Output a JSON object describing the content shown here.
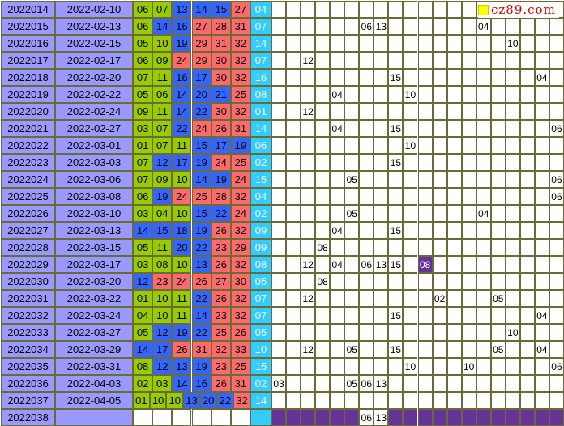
{
  "logo_text": "cz89.com",
  "colors": {
    "issue_bg": "#9999ff",
    "blue": "#3366ff",
    "green": "#99cc00",
    "red": "#ff6b6b",
    "cyan": "#33ccff",
    "purple": "#663399",
    "grid_border": "#6b6b3a"
  },
  "chart_data": {
    "type": "table",
    "miss_columns": 20,
    "rows": [
      {
        "issue": "2022014",
        "date": "2022-02-10",
        "nums": [
          [
            "06",
            "green"
          ],
          [
            "07",
            "green"
          ],
          [
            "13",
            "blue"
          ],
          [
            "14",
            "blue"
          ],
          [
            "15",
            "blue"
          ],
          [
            "27",
            "red"
          ]
        ],
        "back": "04",
        "marks": []
      },
      {
        "issue": "2022015",
        "date": "2022-02-13",
        "nums": [
          [
            "06",
            "green"
          ],
          [
            "14",
            "blue"
          ],
          [
            "16",
            "blue"
          ],
          [
            "27",
            "red"
          ],
          [
            "28",
            "red"
          ],
          [
            "31",
            "red"
          ]
        ],
        "back": "07",
        "marks": [
          [
            6,
            "06"
          ],
          [
            7,
            "13"
          ],
          [
            14,
            "04"
          ]
        ]
      },
      {
        "issue": "2022016",
        "date": "2022-02-15",
        "nums": [
          [
            "05",
            "green"
          ],
          [
            "10",
            "green"
          ],
          [
            "19",
            "blue"
          ],
          [
            "29",
            "red"
          ],
          [
            "31",
            "red"
          ],
          [
            "32",
            "red"
          ]
        ],
        "back": "14",
        "marks": [
          [
            16,
            "10"
          ]
        ]
      },
      {
        "issue": "2022017",
        "date": "2022-02-17",
        "nums": [
          [
            "06",
            "green"
          ],
          [
            "09",
            "green"
          ],
          [
            "24",
            "red"
          ],
          [
            "29",
            "red"
          ],
          [
            "30",
            "red"
          ],
          [
            "32",
            "red"
          ]
        ],
        "back": "07",
        "marks": [
          [
            2,
            "12"
          ]
        ]
      },
      {
        "issue": "2022018",
        "date": "2022-02-20",
        "nums": [
          [
            "07",
            "green"
          ],
          [
            "11",
            "green"
          ],
          [
            "16",
            "blue"
          ],
          [
            "17",
            "blue"
          ],
          [
            "30",
            "red"
          ],
          [
            "32",
            "red"
          ]
        ],
        "back": "16",
        "marks": [
          [
            8,
            "15"
          ],
          [
            18,
            "04"
          ]
        ]
      },
      {
        "issue": "2022019",
        "date": "2022-02-22",
        "nums": [
          [
            "05",
            "green"
          ],
          [
            "06",
            "green"
          ],
          [
            "14",
            "blue"
          ],
          [
            "20",
            "blue"
          ],
          [
            "21",
            "blue"
          ],
          [
            "25",
            "red"
          ]
        ],
        "back": "08",
        "marks": [
          [
            4,
            "04"
          ],
          [
            9,
            "10"
          ]
        ]
      },
      {
        "issue": "2022020",
        "date": "2022-02-24",
        "nums": [
          [
            "09",
            "green"
          ],
          [
            "11",
            "green"
          ],
          [
            "14",
            "blue"
          ],
          [
            "22",
            "blue"
          ],
          [
            "30",
            "red"
          ],
          [
            "32",
            "red"
          ]
        ],
        "back": "01",
        "marks": [
          [
            2,
            "12"
          ]
        ]
      },
      {
        "issue": "2022021",
        "date": "2022-02-27",
        "nums": [
          [
            "03",
            "green"
          ],
          [
            "07",
            "green"
          ],
          [
            "22",
            "blue"
          ],
          [
            "24",
            "red"
          ],
          [
            "26",
            "red"
          ],
          [
            "31",
            "red"
          ]
        ],
        "back": "14",
        "marks": [
          [
            4,
            "04"
          ],
          [
            8,
            "15"
          ],
          [
            19,
            "06"
          ]
        ]
      },
      {
        "issue": "2022022",
        "date": "2022-03-01",
        "nums": [
          [
            "01",
            "green"
          ],
          [
            "07",
            "green"
          ],
          [
            "11",
            "green"
          ],
          [
            "15",
            "blue"
          ],
          [
            "17",
            "blue"
          ],
          [
            "19",
            "blue"
          ]
        ],
        "back": "06",
        "marks": [
          [
            9,
            "10"
          ]
        ]
      },
      {
        "issue": "2022023",
        "date": "2022-03-03",
        "nums": [
          [
            "07",
            "green"
          ],
          [
            "12",
            "blue"
          ],
          [
            "17",
            "blue"
          ],
          [
            "19",
            "blue"
          ],
          [
            "24",
            "red"
          ],
          [
            "25",
            "red"
          ]
        ],
        "back": "02",
        "marks": [
          [
            8,
            "15"
          ]
        ]
      },
      {
        "issue": "2022024",
        "date": "2022-03-06",
        "nums": [
          [
            "07",
            "green"
          ],
          [
            "09",
            "green"
          ],
          [
            "10",
            "green"
          ],
          [
            "14",
            "blue"
          ],
          [
            "19",
            "blue"
          ],
          [
            "24",
            "red"
          ]
        ],
        "back": "15",
        "marks": [
          [
            5,
            "05"
          ],
          [
            19,
            "06"
          ]
        ]
      },
      {
        "issue": "2022025",
        "date": "2022-03-08",
        "nums": [
          [
            "06",
            "green"
          ],
          [
            "19",
            "blue"
          ],
          [
            "24",
            "red"
          ],
          [
            "25",
            "red"
          ],
          [
            "28",
            "red"
          ],
          [
            "32",
            "red"
          ]
        ],
        "back": "04",
        "marks": [
          [
            19,
            "06"
          ]
        ]
      },
      {
        "issue": "2022026",
        "date": "2022-03-10",
        "nums": [
          [
            "03",
            "green"
          ],
          [
            "04",
            "green"
          ],
          [
            "10",
            "green"
          ],
          [
            "15",
            "blue"
          ],
          [
            "22",
            "blue"
          ],
          [
            "24",
            "red"
          ]
        ],
        "back": "02",
        "marks": [
          [
            5,
            "05"
          ],
          [
            14,
            "04"
          ]
        ]
      },
      {
        "issue": "2022027",
        "date": "2022-03-13",
        "nums": [
          [
            "14",
            "blue"
          ],
          [
            "15",
            "blue"
          ],
          [
            "18",
            "blue"
          ],
          [
            "19",
            "blue"
          ],
          [
            "26",
            "red"
          ],
          [
            "32",
            "red"
          ]
        ],
        "back": "09",
        "marks": [
          [
            4,
            "04"
          ],
          [
            8,
            "15"
          ]
        ]
      },
      {
        "issue": "2022028",
        "date": "2022-03-15",
        "nums": [
          [
            "05",
            "green"
          ],
          [
            "11",
            "green"
          ],
          [
            "20",
            "blue"
          ],
          [
            "22",
            "blue"
          ],
          [
            "23",
            "red"
          ],
          [
            "29",
            "red"
          ]
        ],
        "back": "09",
        "marks": [
          [
            3,
            "08"
          ]
        ]
      },
      {
        "issue": "2022029",
        "date": "2022-03-17",
        "nums": [
          [
            "03",
            "green"
          ],
          [
            "08",
            "green"
          ],
          [
            "10",
            "green"
          ],
          [
            "13",
            "blue"
          ],
          [
            "26",
            "red"
          ],
          [
            "32",
            "red"
          ]
        ],
        "back": "08",
        "marks": [
          [
            2,
            "12"
          ],
          [
            4,
            "04"
          ],
          [
            6,
            "06"
          ],
          [
            7,
            "13"
          ],
          [
            8,
            "15"
          ],
          [
            10,
            "08p"
          ]
        ]
      },
      {
        "issue": "2022030",
        "date": "2022-03-20",
        "nums": [
          [
            "12",
            "blue"
          ],
          [
            "23",
            "red"
          ],
          [
            "24",
            "red"
          ],
          [
            "26",
            "red"
          ],
          [
            "27",
            "red"
          ],
          [
            "30",
            "red"
          ]
        ],
        "back": "05",
        "marks": [
          [
            3,
            "08"
          ]
        ]
      },
      {
        "issue": "2022031",
        "date": "2022-03-22",
        "nums": [
          [
            "01",
            "green"
          ],
          [
            "10",
            "green"
          ],
          [
            "11",
            "green"
          ],
          [
            "22",
            "blue"
          ],
          [
            "26",
            "red"
          ],
          [
            "32",
            "red"
          ]
        ],
        "back": "07",
        "marks": [
          [
            2,
            "12"
          ],
          [
            11,
            "02"
          ],
          [
            15,
            "05"
          ]
        ]
      },
      {
        "issue": "2022032",
        "date": "2022-03-24",
        "nums": [
          [
            "04",
            "green"
          ],
          [
            "10",
            "green"
          ],
          [
            "11",
            "green"
          ],
          [
            "14",
            "blue"
          ],
          [
            "23",
            "red"
          ],
          [
            "32",
            "red"
          ]
        ],
        "back": "07",
        "marks": [
          [
            8,
            "15"
          ],
          [
            18,
            "04"
          ]
        ]
      },
      {
        "issue": "2022033",
        "date": "2022-03-27",
        "nums": [
          [
            "05",
            "green"
          ],
          [
            "12",
            "blue"
          ],
          [
            "19",
            "blue"
          ],
          [
            "22",
            "blue"
          ],
          [
            "25",
            "red"
          ],
          [
            "26",
            "red"
          ]
        ],
        "back": "05",
        "marks": [
          [
            16,
            "10"
          ]
        ]
      },
      {
        "issue": "2022034",
        "date": "2022-03-29",
        "nums": [
          [
            "14",
            "blue"
          ],
          [
            "17",
            "blue"
          ],
          [
            "26",
            "red"
          ],
          [
            "31",
            "red"
          ],
          [
            "32",
            "red"
          ],
          [
            "33",
            "red"
          ]
        ],
        "back": "10",
        "marks": [
          [
            2,
            "12"
          ],
          [
            5,
            "05"
          ],
          [
            8,
            "15"
          ],
          [
            15,
            "05"
          ],
          [
            18,
            "04"
          ]
        ]
      },
      {
        "issue": "2022035",
        "date": "2022-03-31",
        "nums": [
          [
            "08",
            "green"
          ],
          [
            "12",
            "blue"
          ],
          [
            "13",
            "blue"
          ],
          [
            "19",
            "blue"
          ],
          [
            "23",
            "red"
          ],
          [
            "25",
            "red"
          ]
        ],
        "back": "15",
        "marks": [
          [
            9,
            "10"
          ],
          [
            13,
            "10"
          ],
          [
            19,
            "06"
          ]
        ]
      },
      {
        "issue": "2022036",
        "date": "2022-04-03",
        "nums": [
          [
            "02",
            "green"
          ],
          [
            "03",
            "green"
          ],
          [
            "14",
            "blue"
          ],
          [
            "16",
            "blue"
          ],
          [
            "26",
            "red"
          ],
          [
            "31",
            "red"
          ]
        ],
        "back": "02",
        "marks": [
          [
            0,
            "03"
          ],
          [
            5,
            "05"
          ],
          [
            6,
            "06"
          ],
          [
            7,
            "13"
          ]
        ]
      },
      {
        "issue": "2022037",
        "date": "2022-04-05",
        "nums": [
          [
            "01",
            "green"
          ],
          [
            "10",
            "green"
          ],
          [
            "10",
            "green"
          ],
          [
            "13",
            "blue"
          ],
          [
            "20",
            "blue"
          ],
          [
            "22",
            "blue"
          ],
          [
            "32",
            "red"
          ]
        ],
        "back": "14",
        "marks": []
      },
      {
        "issue": "2022038",
        "date": "",
        "nums": [],
        "back": "",
        "marks": [
          [
            6,
            "06"
          ],
          [
            7,
            "13"
          ]
        ],
        "pending": true
      }
    ]
  }
}
